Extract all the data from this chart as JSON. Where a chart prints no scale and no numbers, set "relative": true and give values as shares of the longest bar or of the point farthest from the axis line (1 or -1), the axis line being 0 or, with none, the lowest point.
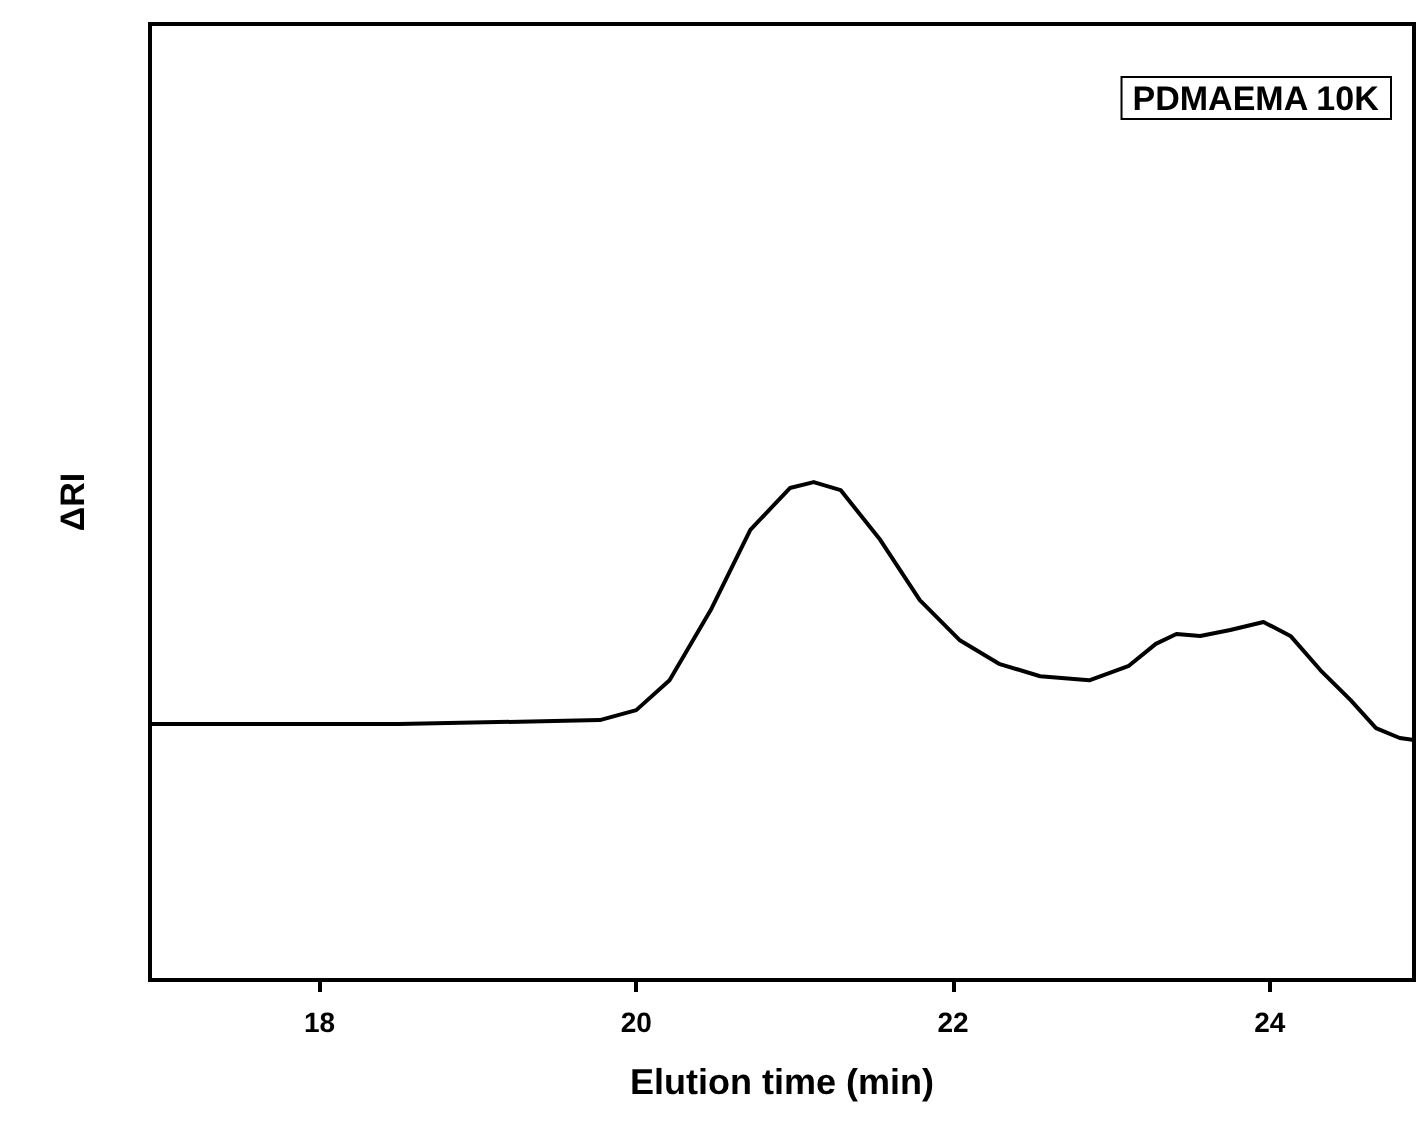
{
  "chart_data": {
    "type": "line",
    "relative": true,
    "xlabel": "Elution time (min)",
    "ylabel": "ΔRI",
    "annotations": [
      "PDMAEMA 10K"
    ],
    "xlim": [
      16.93,
      24.91
    ],
    "xticks": [
      18,
      20,
      22,
      24
    ],
    "marker": "none",
    "line_style": "solid",
    "series": [
      {
        "color": "#000000",
        "x": [
          16.93,
          18.5,
          19.77,
          20.0,
          20.21,
          20.47,
          20.72,
          20.97,
          21.12,
          21.29,
          21.54,
          21.79,
          22.04,
          22.29,
          22.55,
          22.86,
          23.11,
          23.28,
          23.41,
          23.56,
          23.75,
          23.96,
          24.13,
          24.32,
          24.51,
          24.67,
          24.82,
          24.91
        ],
        "values": [
          0.514,
          0.514,
          0.522,
          0.542,
          0.602,
          0.743,
          0.904,
          0.988,
          1,
          0.984,
          0.884,
          0.763,
          0.683,
          0.635,
          0.61,
          0.602,
          0.631,
          0.675,
          0.695,
          0.691,
          0.703,
          0.719,
          0.691,
          0.622,
          0.562,
          0.506,
          0.486,
          0.482
        ]
      }
    ]
  }
}
